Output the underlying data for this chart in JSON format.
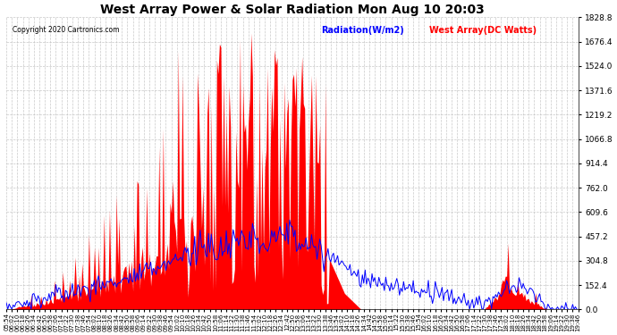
{
  "title": "West Array Power & Solar Radiation Mon Aug 10 20:03",
  "copyright": "Copyright 2020 Cartronics.com",
  "legend_radiation": "Radiation(W/m2)",
  "legend_west": "West Array(DC Watts)",
  "legend_radiation_color": "blue",
  "legend_west_color": "red",
  "ymax": 1828.8,
  "ymin": 0.0,
  "ytick_step": 152.4,
  "background_color": "#ffffff",
  "plot_bg_color": "#ffffff",
  "grid_color": "#bbbbbb",
  "fill_color_west": "red",
  "line_color_radiation": "blue",
  "x_start_min": 354,
  "x_end_min": 1186,
  "interval_minutes": 2
}
